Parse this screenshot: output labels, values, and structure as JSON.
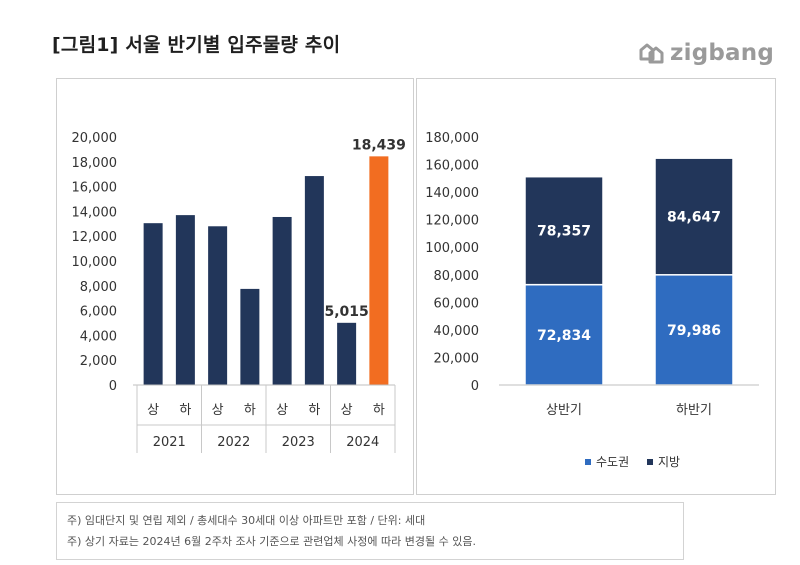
{
  "header": {
    "title": "[그림1] 서울 반기별 입주물량 추이",
    "logo_text": "zigbang"
  },
  "notes": [
    "주) 임대단지 및 연립 제외 / 총세대수 30세대 이상 아파트만 포함 / 단위: 세대",
    "주) 상기 자료는 2024년 6월 2주차 조사 기준으로 관련업체 사정에 따라 변경될 수 있음."
  ],
  "chart_data": [
    {
      "type": "bar",
      "ylim": [
        0,
        20000
      ],
      "yticks": [
        "0",
        "2,000",
        "4,000",
        "6,000",
        "8,000",
        "10,000",
        "12,000",
        "14,000",
        "16,000",
        "18,000",
        "20,000"
      ],
      "categories": [
        {
          "year": "2021",
          "half": "상",
          "value": 13050,
          "color": "#22365a"
        },
        {
          "year": "2021",
          "half": "하",
          "value": 13700,
          "color": "#22365a"
        },
        {
          "year": "2022",
          "half": "상",
          "value": 12800,
          "color": "#22365a"
        },
        {
          "year": "2022",
          "half": "하",
          "value": 7750,
          "color": "#22365a"
        },
        {
          "year": "2023",
          "half": "상",
          "value": 13550,
          "color": "#22365a"
        },
        {
          "year": "2023",
          "half": "하",
          "value": 16850,
          "color": "#22365a"
        },
        {
          "year": "2024",
          "half": "상",
          "value": 5015,
          "color": "#22365a"
        },
        {
          "year": "2024",
          "half": "하",
          "value": 18439,
          "color": "#f26d21"
        }
      ],
      "years": [
        "2021",
        "2022",
        "2023",
        "2024"
      ],
      "data_labels": [
        {
          "index": 6,
          "text": "5,015"
        },
        {
          "index": 7,
          "text": "18,439"
        }
      ],
      "grid": false
    },
    {
      "type": "bar",
      "stacked": true,
      "ylim": [
        0,
        180000
      ],
      "yticks": [
        "0",
        "20,000",
        "40,000",
        "60,000",
        "80,000",
        "100,000",
        "120,000",
        "140,000",
        "160,000",
        "180,000"
      ],
      "categories": [
        "상반기",
        "하반기"
      ],
      "series": [
        {
          "name": "수도권",
          "values": [
            72834,
            79986
          ],
          "labels": [
            "72,834",
            "79,986"
          ],
          "color": "#2f6cc0"
        },
        {
          "name": "지방",
          "values": [
            78357,
            84647
          ],
          "labels": [
            "78,357",
            "84,647"
          ],
          "color": "#22365a"
        }
      ],
      "legend": "bottom",
      "grid": false
    }
  ]
}
